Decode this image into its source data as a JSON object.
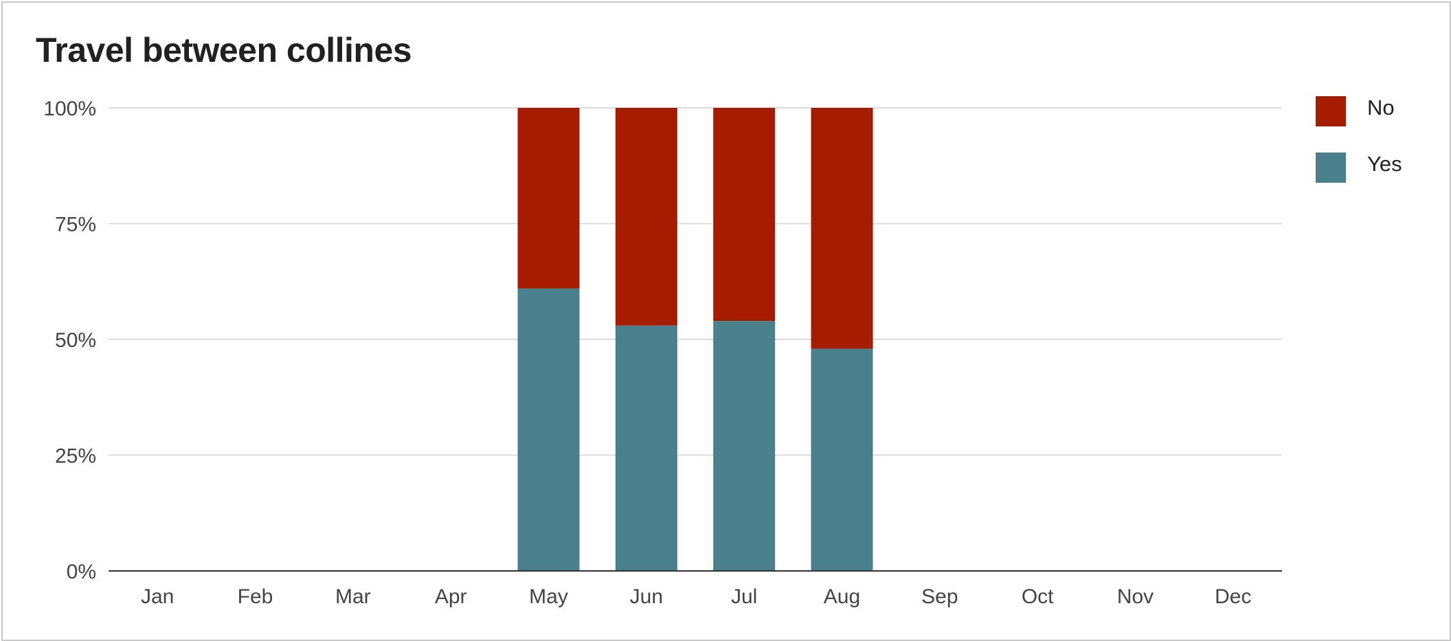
{
  "chart_data": {
    "type": "bar",
    "stacked": true,
    "normalized": true,
    "title": "Travel between collines",
    "xlabel": "",
    "ylabel": "",
    "categories": [
      "Jan",
      "Feb",
      "Mar",
      "Apr",
      "May",
      "Jun",
      "Jul",
      "Aug",
      "Sep",
      "Oct",
      "Nov",
      "Dec"
    ],
    "series": [
      {
        "name": "Yes",
        "color": "#4a7f8c",
        "values": [
          0,
          0,
          0,
          0,
          61,
          53,
          54,
          48,
          0,
          0,
          0,
          0
        ]
      },
      {
        "name": "No",
        "color": "#a61c00",
        "values": [
          0,
          0,
          0,
          0,
          39,
          47,
          46,
          52,
          0,
          0,
          0,
          0
        ]
      }
    ],
    "ylim": [
      0,
      100
    ],
    "y_ticks": [
      "0%",
      "25%",
      "50%",
      "75%",
      "100%"
    ],
    "grid": true,
    "legend_position": "right",
    "legend_order": [
      "No",
      "Yes"
    ]
  }
}
